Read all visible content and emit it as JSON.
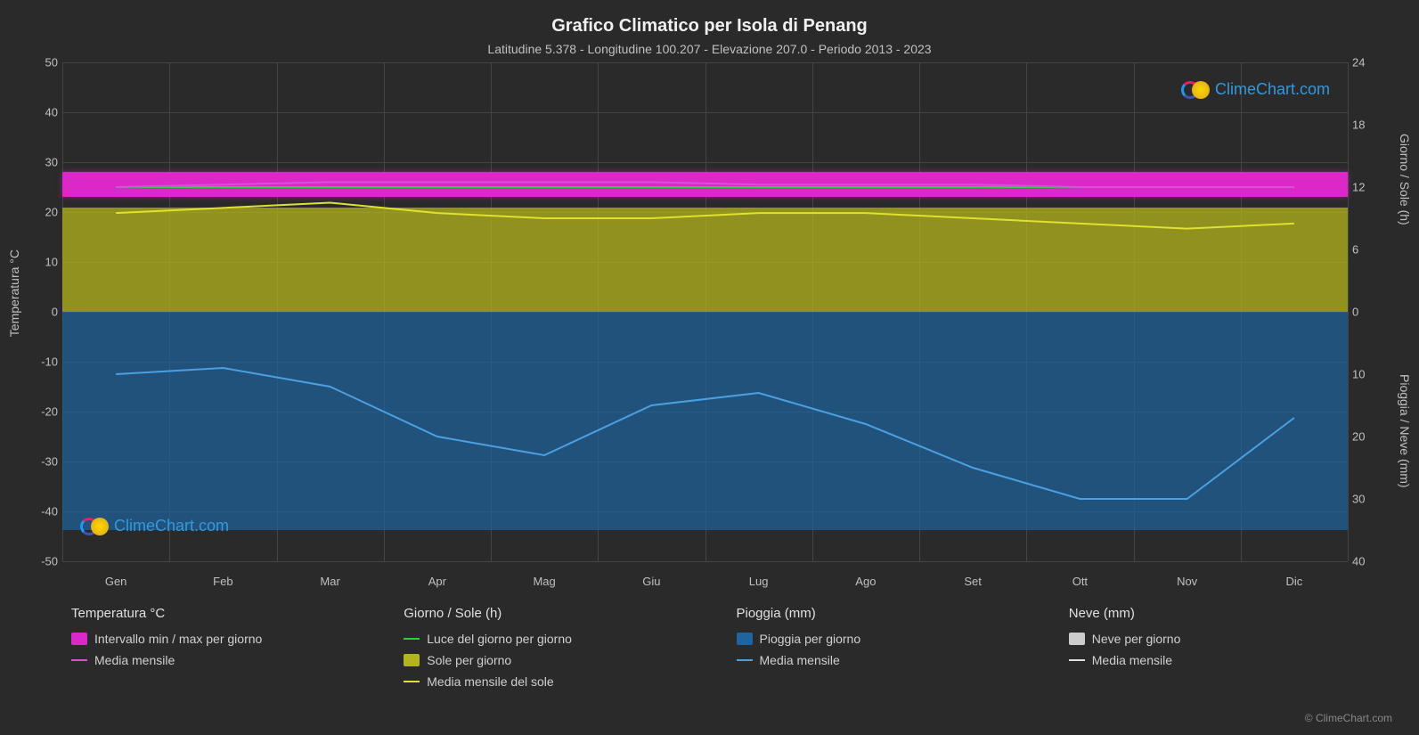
{
  "title": "Grafico Climatico per Isola di Penang",
  "subtitle": "Latitudine 5.378 - Longitudine 100.207 - Elevazione 207.0 - Periodo 2013 - 2023",
  "background_color": "#2a2a2a",
  "grid_color": "#444444",
  "text_color": "#e0e0e0",
  "axis_left": {
    "label": "Temperatura °C",
    "min": -50,
    "max": 50,
    "ticks": [
      -50,
      -40,
      -30,
      -20,
      -10,
      0,
      10,
      20,
      30,
      40,
      50
    ],
    "tick_fontsize": 13
  },
  "axis_right_top": {
    "label": "Giorno / Sole (h)",
    "min": 0,
    "max": 24,
    "ticks": [
      0,
      6,
      12,
      18,
      24
    ]
  },
  "axis_right_bottom": {
    "label": "Pioggia / Neve (mm)",
    "min": 0,
    "max": 40,
    "ticks": [
      0,
      10,
      20,
      30,
      40
    ]
  },
  "months": [
    "Gen",
    "Feb",
    "Mar",
    "Apr",
    "Mag",
    "Giu",
    "Lug",
    "Ago",
    "Set",
    "Ott",
    "Nov",
    "Dic"
  ],
  "series": {
    "temperature": {
      "band_min": 23,
      "band_max": 28,
      "band_color": "#dc28c8",
      "mean_color": "#d850d8",
      "mean_monthly": [
        25,
        25.5,
        26,
        26,
        26,
        26,
        25.5,
        25.5,
        25.5,
        25,
        25,
        25
      ]
    },
    "daylight": {
      "color": "#2ecc40",
      "monthly": [
        12,
        12,
        12,
        12,
        12,
        12,
        12,
        12,
        12,
        12,
        12,
        12
      ]
    },
    "sun": {
      "fill_color": "#b4b41e",
      "daily_top_h": 10,
      "mean_color": "#e0e030",
      "mean_monthly_h": [
        9.5,
        10,
        10.5,
        9.5,
        9,
        9,
        9.5,
        9.5,
        9,
        8.5,
        8,
        8.5
      ]
    },
    "rain": {
      "fill_color": "#1e64a0",
      "daily_max_mm": 35,
      "mean_color": "#4aa0e0",
      "mean_monthly_mm": [
        10,
        9,
        12,
        20,
        23,
        15,
        13,
        18,
        25,
        30,
        30,
        17
      ]
    },
    "snow": {
      "fill_color": "#cccccc",
      "mean_color": "#e0e0e0"
    }
  },
  "legend": {
    "columns": [
      {
        "header": "Temperatura °C",
        "items": [
          {
            "type": "swatch",
            "color": "#dc28c8",
            "label": "Intervallo min / max per giorno"
          },
          {
            "type": "line",
            "color": "#d850d8",
            "label": "Media mensile"
          }
        ]
      },
      {
        "header": "Giorno / Sole (h)",
        "items": [
          {
            "type": "line",
            "color": "#2ecc40",
            "label": "Luce del giorno per giorno"
          },
          {
            "type": "swatch",
            "color": "#b4b41e",
            "label": "Sole per giorno"
          },
          {
            "type": "line",
            "color": "#e0e030",
            "label": "Media mensile del sole"
          }
        ]
      },
      {
        "header": "Pioggia (mm)",
        "items": [
          {
            "type": "swatch",
            "color": "#1e64a0",
            "label": "Pioggia per giorno"
          },
          {
            "type": "line",
            "color": "#4aa0e0",
            "label": "Media mensile"
          }
        ]
      },
      {
        "header": "Neve (mm)",
        "items": [
          {
            "type": "swatch",
            "color": "#cccccc",
            "label": "Neve per giorno"
          },
          {
            "type": "line",
            "color": "#e0e0e0",
            "label": "Media mensile"
          }
        ]
      }
    ]
  },
  "watermark": {
    "text": "ClimeChart.com",
    "color": "#3498db"
  },
  "copyright": "© ClimeChart.com"
}
